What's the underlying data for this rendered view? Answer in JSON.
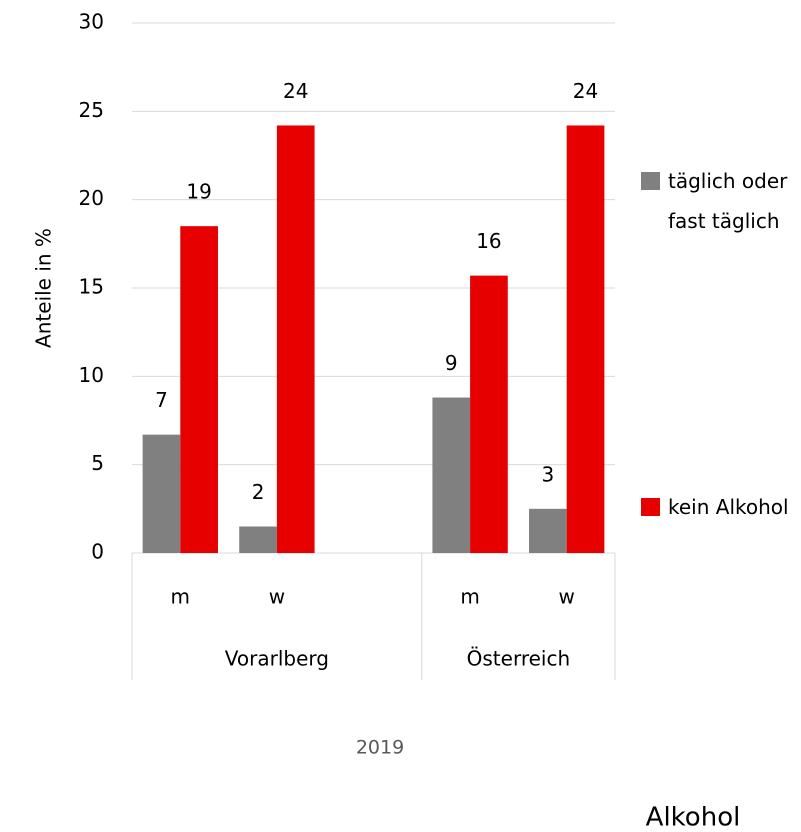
{
  "chart_data": {
    "type": "bar",
    "y_label": "Anteile in %",
    "x_label": "2019",
    "footer": "Alkohol",
    "groups": [
      {
        "name": "Vorarlberg",
        "categories": [
          "m",
          "w",
          null
        ]
      },
      {
        "name": "Österreich",
        "categories": [
          "m",
          "w"
        ]
      }
    ],
    "series": [
      {
        "name": "täglich oder fast täglich",
        "color": "#808080",
        "values": [
          6.7,
          1.5,
          null,
          8.8,
          2.5
        ],
        "value_labels": [
          "7",
          "2",
          null,
          "9",
          "3"
        ]
      },
      {
        "name": "kein Alkohol",
        "color": "#e60000",
        "values": [
          18.5,
          24.2,
          null,
          15.7,
          24.2
        ],
        "value_labels": [
          "19",
          "24",
          null,
          "16",
          "24"
        ]
      }
    ],
    "ylim": [
      0,
      30
    ],
    "yticks": [
      0,
      5,
      10,
      15,
      20,
      25,
      30
    ],
    "grid": true,
    "legend": "right"
  }
}
